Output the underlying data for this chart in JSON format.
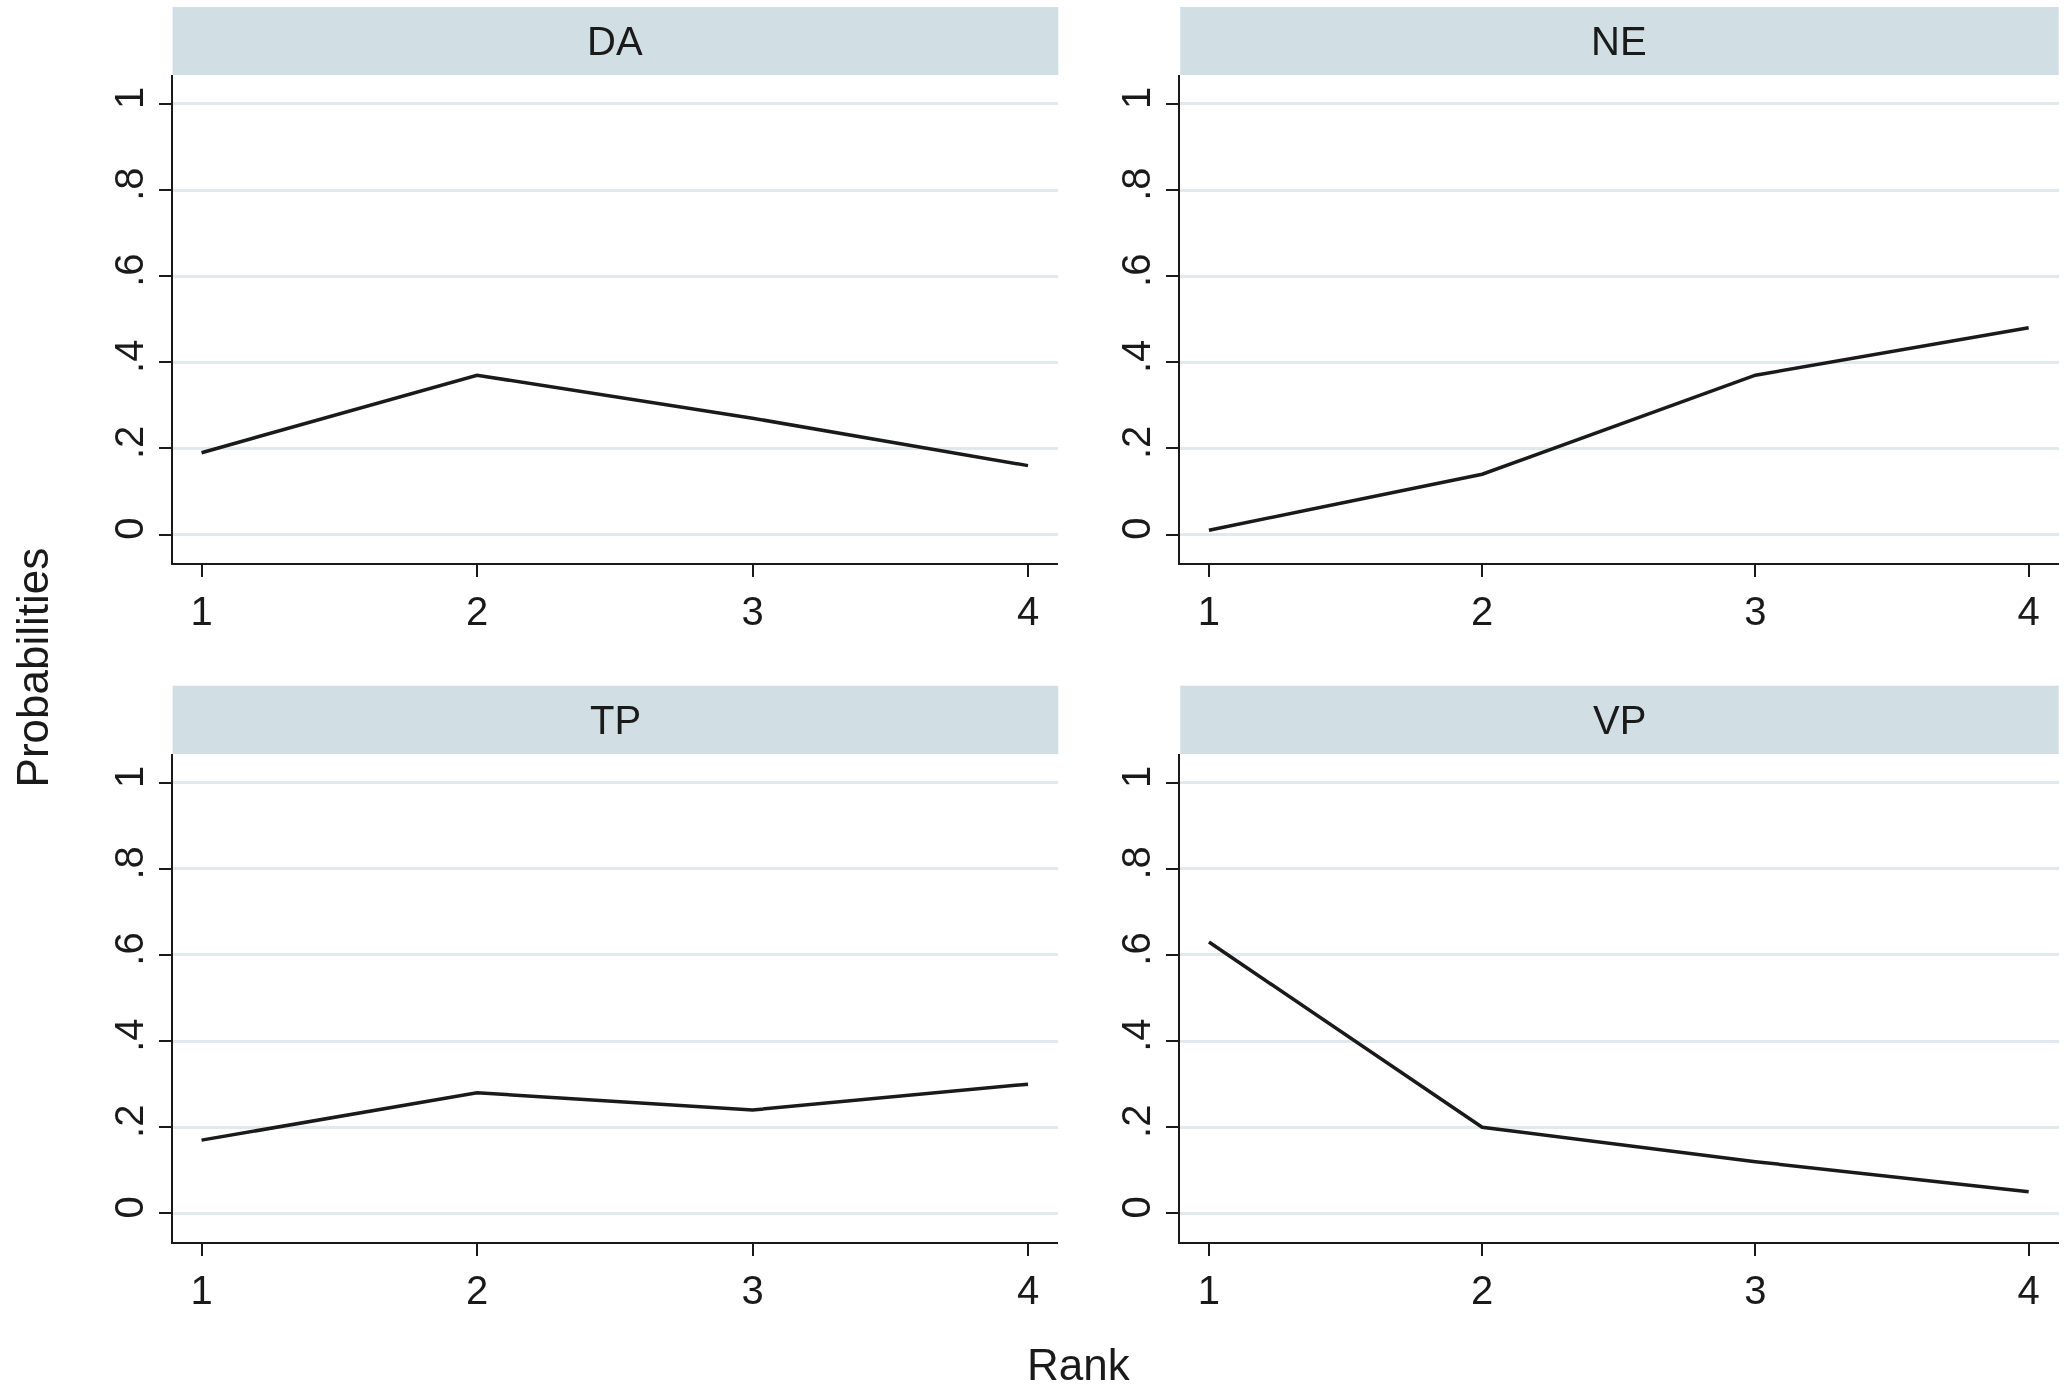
{
  "chart_data": [
    {
      "type": "line",
      "title": "DA",
      "xlabel": "Rank",
      "ylabel": "Probabilities",
      "x": [
        1,
        2,
        3,
        4
      ],
      "values": [
        0.19,
        0.37,
        0.27,
        0.16
      ],
      "color": "#1a1a1a",
      "xlim": [
        0.895,
        4.11
      ],
      "ylim": [
        -0.067,
        1.067
      ],
      "xticks": [
        1,
        2,
        3,
        4
      ],
      "yticks": [
        0,
        {
          "value": 0.2,
          "label": ".2"
        },
        {
          "value": 0.4,
          "label": ".4"
        },
        {
          "value": 0.6,
          "label": ".6"
        },
        {
          "value": 0.8,
          "label": ".8"
        },
        1
      ],
      "grid": "y"
    },
    {
      "type": "line",
      "title": "NE",
      "x": [
        1,
        2,
        3,
        4
      ],
      "values": [
        0.01,
        0.14,
        0.37,
        0.48
      ],
      "color": "#1a1a1a",
      "xlim": [
        0.895,
        4.11
      ],
      "ylim": [
        -0.067,
        1.067
      ],
      "xticks": [
        1,
        2,
        3,
        4
      ],
      "yticks": [
        0,
        {
          "value": 0.2,
          "label": ".2"
        },
        {
          "value": 0.4,
          "label": ".4"
        },
        {
          "value": 0.6,
          "label": ".6"
        },
        {
          "value": 0.8,
          "label": ".8"
        },
        1
      ],
      "grid": "y"
    },
    {
      "type": "line",
      "title": "TP",
      "x": [
        1,
        2,
        3,
        4
      ],
      "values": [
        0.17,
        0.28,
        0.24,
        0.3
      ],
      "color": "#1a1a1a",
      "xlim": [
        0.895,
        4.11
      ],
      "ylim": [
        -0.067,
        1.067
      ],
      "xticks": [
        1,
        2,
        3,
        4
      ],
      "yticks": [
        0,
        {
          "value": 0.2,
          "label": ".2"
        },
        {
          "value": 0.4,
          "label": ".4"
        },
        {
          "value": 0.6,
          "label": ".6"
        },
        {
          "value": 0.8,
          "label": ".8"
        },
        1
      ],
      "grid": "y"
    },
    {
      "type": "line",
      "title": "VP",
      "x": [
        1,
        2,
        3,
        4
      ],
      "values": [
        0.63,
        0.2,
        0.12,
        0.05
      ],
      "color": "#1a1a1a",
      "xlim": [
        0.895,
        4.11
      ],
      "ylim": [
        -0.067,
        1.067
      ],
      "xticks": [
        1,
        2,
        3,
        4
      ],
      "yticks": [
        0,
        {
          "value": 0.2,
          "label": ".2"
        },
        {
          "value": 0.4,
          "label": ".4"
        },
        {
          "value": 0.6,
          "label": ".6"
        },
        {
          "value": 0.8,
          "label": ".8"
        },
        1
      ],
      "grid": "y"
    }
  ]
}
